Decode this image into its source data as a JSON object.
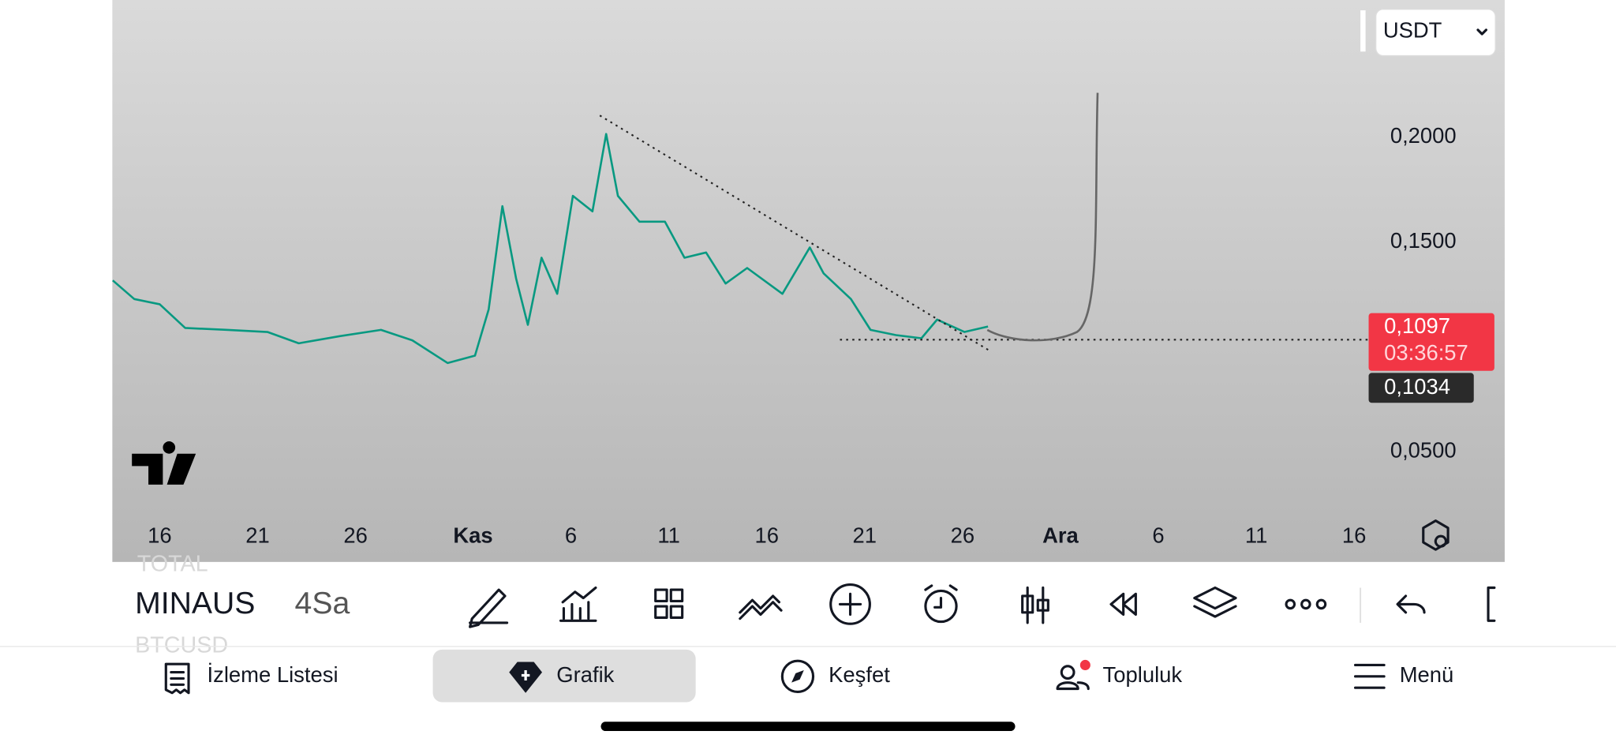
{
  "top_bar": {
    "currency": "USDT"
  },
  "chart_data": {
    "type": "line",
    "color": "#089981",
    "x": [
      -2.4,
      -1.3,
      0,
      1.3,
      3.4,
      5.5,
      7.1,
      9.2,
      11.3,
      12.9,
      14.7,
      16.1,
      16.8,
      17.5,
      18.2,
      18.8,
      19.5,
      20.3,
      21.1,
      22.1,
      22.8,
      23.4,
      24.5,
      25.8,
      26.8,
      27.9,
      28.9,
      30.0,
      31.8,
      33.2,
      33.9,
      35.3,
      36.3,
      37.6,
      38.9,
      39.7,
      41.1,
      42.3
    ],
    "values": [
      0.1317,
      0.1228,
      0.1203,
      0.109,
      0.1081,
      0.1071,
      0.1017,
      0.1051,
      0.1081,
      0.1031,
      0.0923,
      0.0958,
      0.1179,
      0.1671,
      0.1326,
      0.1105,
      0.1425,
      0.1253,
      0.172,
      0.1646,
      0.2015,
      0.172,
      0.1597,
      0.1597,
      0.1425,
      0.145,
      0.1302,
      0.1376,
      0.1253,
      0.1474,
      0.1351,
      0.1228,
      0.1081,
      0.1056,
      0.1041,
      0.113,
      0.1071,
      0.1097
    ],
    "xlim": [
      -2.42,
      61.74
    ],
    "xticks": [
      {
        "value": 0,
        "label": "16"
      },
      {
        "value": 5,
        "label": "21"
      },
      {
        "value": 10,
        "label": "26"
      },
      {
        "value": 16,
        "label": "Kas"
      },
      {
        "value": 21,
        "label": "6"
      },
      {
        "value": 26,
        "label": "11"
      },
      {
        "value": 31,
        "label": "16"
      },
      {
        "value": 36,
        "label": "21"
      },
      {
        "value": 41,
        "label": "26"
      },
      {
        "value": 46,
        "label": "Ara"
      },
      {
        "value": 51,
        "label": "6"
      },
      {
        "value": 56,
        "label": "11"
      },
      {
        "value": 61,
        "label": "16"
      }
    ],
    "ylim": [
      0.0171,
      0.2654
    ],
    "yticks": [
      {
        "value": 0.2,
        "label": "0,2000"
      },
      {
        "value": 0.15,
        "label": "0,1500"
      },
      {
        "value": 0.05,
        "label": "0,0500"
      }
    ],
    "last_price": {
      "value": 0.1097,
      "label": "0,1097",
      "countdown": "03:36:57"
    },
    "line_price": {
      "value": 0.1034,
      "label": "0,1034"
    }
  },
  "toolbar": {
    "faded_above": "TOTAL",
    "symbol": "MINAUS",
    "interval": "4Sa",
    "faded_below": "BTCUSD"
  },
  "nav": {
    "items": [
      "İzleme Listesi",
      "Grafik",
      "Keşfet",
      "Topluluk",
      "Menü"
    ]
  }
}
